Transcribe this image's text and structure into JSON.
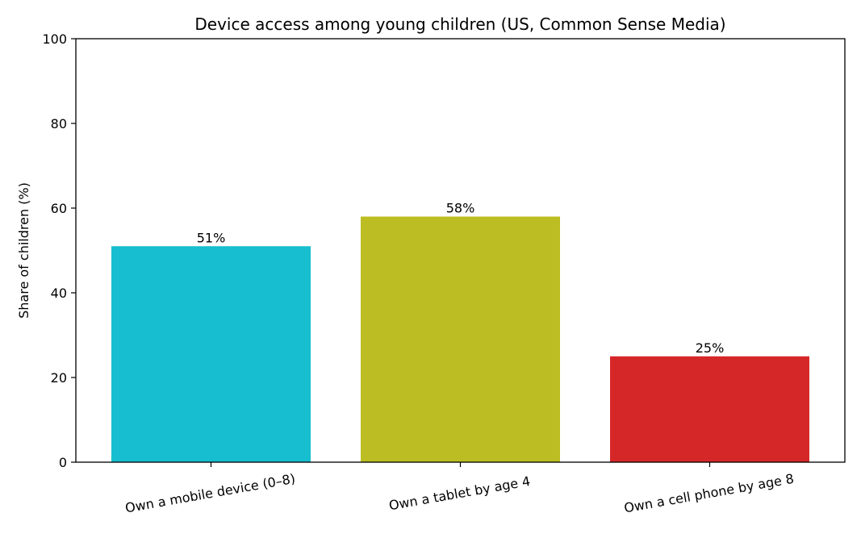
{
  "chart_data": {
    "type": "bar",
    "title": "Device access among young children (US, Common Sense Media)",
    "xlabel": "",
    "ylabel": "Share of children (%)",
    "ylim": [
      0,
      100
    ],
    "yticks": [
      0,
      20,
      40,
      60,
      80,
      100
    ],
    "categories": [
      "Own a mobile device (0–8)",
      "Own a tablet by age 4",
      "Own a cell phone by age 8"
    ],
    "values": [
      51,
      58,
      25
    ],
    "data_labels": [
      "51%",
      "58%",
      "25%"
    ],
    "colors": [
      "#17becf",
      "#bcbd22",
      "#d62728"
    ],
    "grid": false,
    "legend": "none"
  }
}
